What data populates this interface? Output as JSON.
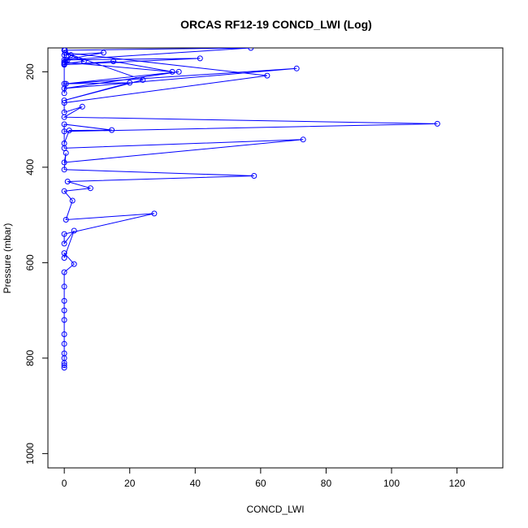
{
  "chart_data": {
    "type": "line",
    "title": "ORCAS RF12-19 CONCD_LWI (Log)",
    "xlabel": "CONCD_LWI",
    "ylabel": "Pressure (mbar)",
    "xlim": [
      -5,
      134
    ],
    "ylim": [
      1030,
      150
    ],
    "y_reversed": true,
    "x_ticks": [
      0,
      20,
      40,
      60,
      80,
      100,
      120
    ],
    "y_ticks": [
      200,
      400,
      600,
      800,
      1000
    ],
    "grid": false,
    "legend": "none",
    "series_color": "#0000ff",
    "x": [
      0,
      0.3,
      6,
      0,
      0,
      12,
      0,
      0.2,
      57,
      0.5,
      0,
      2,
      0,
      15,
      33,
      0,
      1,
      41.5,
      0,
      0,
      0.5,
      35,
      0,
      71,
      0,
      20,
      0,
      24,
      0.3,
      62,
      0,
      0,
      5.5,
      0,
      114,
      0,
      0,
      1.5,
      14.5,
      0,
      0,
      73,
      0,
      0.5,
      0,
      58,
      1,
      8,
      0,
      2.5,
      0.5,
      27.5,
      0,
      0,
      3,
      0,
      0,
      3,
      0,
      0,
      0,
      0,
      0,
      0,
      0,
      0,
      0,
      0,
      0,
      0
    ],
    "y": [
      155,
      160,
      178,
      183,
      165,
      160,
      175,
      155,
      150,
      175,
      180,
      165,
      185,
      178,
      200,
      180,
      175,
      172,
      185,
      245,
      225,
      200,
      235,
      193,
      225,
      223,
      260,
      217,
      160,
      208,
      265,
      285,
      273,
      295,
      309,
      325,
      350,
      323,
      322,
      310,
      360,
      342,
      390,
      370,
      405,
      418,
      430,
      444,
      450,
      470,
      510,
      497,
      540,
      560,
      533,
      590,
      580,
      603,
      620,
      650,
      680,
      700,
      720,
      750,
      770,
      790,
      800,
      810,
      815,
      820
    ]
  }
}
